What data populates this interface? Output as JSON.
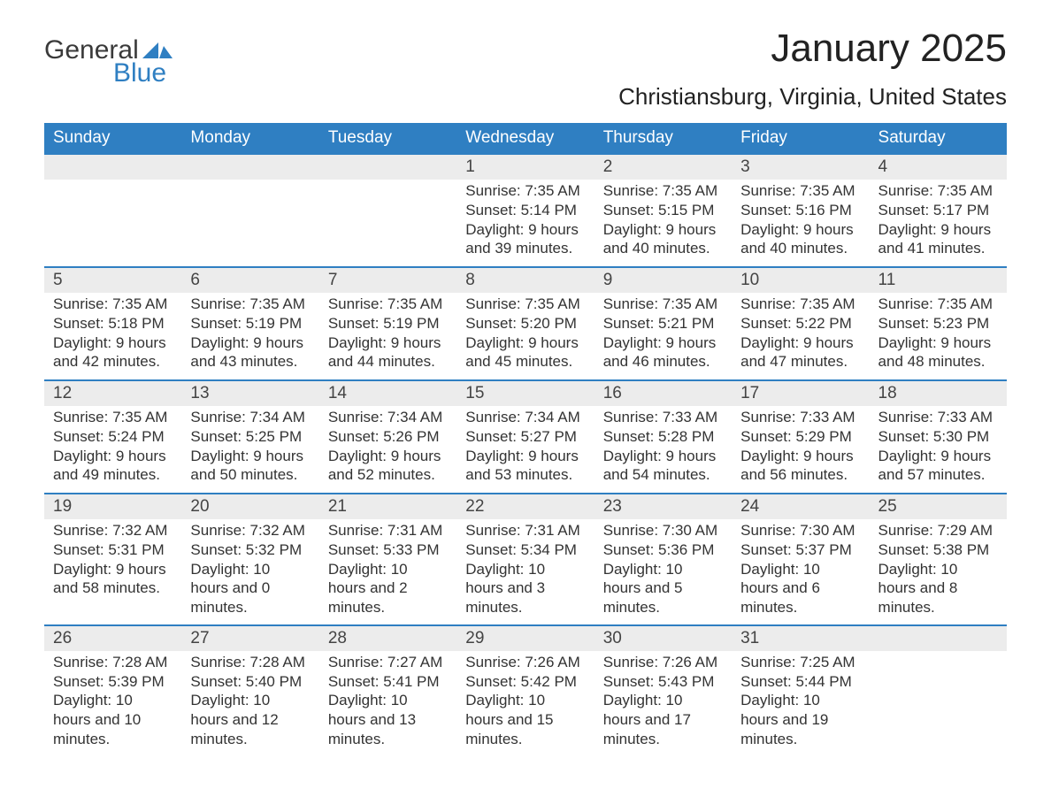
{
  "logo": {
    "text1": "General",
    "text2": "Blue",
    "flag_color": "#2f7fc2"
  },
  "title": "January 2025",
  "subtitle": "Christiansburg, Virginia, United States",
  "colors": {
    "header_bg": "#2f7fc2",
    "band_bg": "#ececec",
    "border": "#2f7fc2",
    "text": "#333333",
    "page_bg": "#ffffff"
  },
  "day_headers": [
    "Sunday",
    "Monday",
    "Tuesday",
    "Wednesday",
    "Thursday",
    "Friday",
    "Saturday"
  ],
  "weeks": [
    [
      {
        "n": "",
        "sr": "",
        "ss": "",
        "dl": ""
      },
      {
        "n": "",
        "sr": "",
        "ss": "",
        "dl": ""
      },
      {
        "n": "",
        "sr": "",
        "ss": "",
        "dl": ""
      },
      {
        "n": "1",
        "sr": "Sunrise: 7:35 AM",
        "ss": "Sunset: 5:14 PM",
        "dl": "Daylight: 9 hours and 39 minutes."
      },
      {
        "n": "2",
        "sr": "Sunrise: 7:35 AM",
        "ss": "Sunset: 5:15 PM",
        "dl": "Daylight: 9 hours and 40 minutes."
      },
      {
        "n": "3",
        "sr": "Sunrise: 7:35 AM",
        "ss": "Sunset: 5:16 PM",
        "dl": "Daylight: 9 hours and 40 minutes."
      },
      {
        "n": "4",
        "sr": "Sunrise: 7:35 AM",
        "ss": "Sunset: 5:17 PM",
        "dl": "Daylight: 9 hours and 41 minutes."
      }
    ],
    [
      {
        "n": "5",
        "sr": "Sunrise: 7:35 AM",
        "ss": "Sunset: 5:18 PM",
        "dl": "Daylight: 9 hours and 42 minutes."
      },
      {
        "n": "6",
        "sr": "Sunrise: 7:35 AM",
        "ss": "Sunset: 5:19 PM",
        "dl": "Daylight: 9 hours and 43 minutes."
      },
      {
        "n": "7",
        "sr": "Sunrise: 7:35 AM",
        "ss": "Sunset: 5:19 PM",
        "dl": "Daylight: 9 hours and 44 minutes."
      },
      {
        "n": "8",
        "sr": "Sunrise: 7:35 AM",
        "ss": "Sunset: 5:20 PM",
        "dl": "Daylight: 9 hours and 45 minutes."
      },
      {
        "n": "9",
        "sr": "Sunrise: 7:35 AM",
        "ss": "Sunset: 5:21 PM",
        "dl": "Daylight: 9 hours and 46 minutes."
      },
      {
        "n": "10",
        "sr": "Sunrise: 7:35 AM",
        "ss": "Sunset: 5:22 PM",
        "dl": "Daylight: 9 hours and 47 minutes."
      },
      {
        "n": "11",
        "sr": "Sunrise: 7:35 AM",
        "ss": "Sunset: 5:23 PM",
        "dl": "Daylight: 9 hours and 48 minutes."
      }
    ],
    [
      {
        "n": "12",
        "sr": "Sunrise: 7:35 AM",
        "ss": "Sunset: 5:24 PM",
        "dl": "Daylight: 9 hours and 49 minutes."
      },
      {
        "n": "13",
        "sr": "Sunrise: 7:34 AM",
        "ss": "Sunset: 5:25 PM",
        "dl": "Daylight: 9 hours and 50 minutes."
      },
      {
        "n": "14",
        "sr": "Sunrise: 7:34 AM",
        "ss": "Sunset: 5:26 PM",
        "dl": "Daylight: 9 hours and 52 minutes."
      },
      {
        "n": "15",
        "sr": "Sunrise: 7:34 AM",
        "ss": "Sunset: 5:27 PM",
        "dl": "Daylight: 9 hours and 53 minutes."
      },
      {
        "n": "16",
        "sr": "Sunrise: 7:33 AM",
        "ss": "Sunset: 5:28 PM",
        "dl": "Daylight: 9 hours and 54 minutes."
      },
      {
        "n": "17",
        "sr": "Sunrise: 7:33 AM",
        "ss": "Sunset: 5:29 PM",
        "dl": "Daylight: 9 hours and 56 minutes."
      },
      {
        "n": "18",
        "sr": "Sunrise: 7:33 AM",
        "ss": "Sunset: 5:30 PM",
        "dl": "Daylight: 9 hours and 57 minutes."
      }
    ],
    [
      {
        "n": "19",
        "sr": "Sunrise: 7:32 AM",
        "ss": "Sunset: 5:31 PM",
        "dl": "Daylight: 9 hours and 58 minutes."
      },
      {
        "n": "20",
        "sr": "Sunrise: 7:32 AM",
        "ss": "Sunset: 5:32 PM",
        "dl": "Daylight: 10 hours and 0 minutes."
      },
      {
        "n": "21",
        "sr": "Sunrise: 7:31 AM",
        "ss": "Sunset: 5:33 PM",
        "dl": "Daylight: 10 hours and 2 minutes."
      },
      {
        "n": "22",
        "sr": "Sunrise: 7:31 AM",
        "ss": "Sunset: 5:34 PM",
        "dl": "Daylight: 10 hours and 3 minutes."
      },
      {
        "n": "23",
        "sr": "Sunrise: 7:30 AM",
        "ss": "Sunset: 5:36 PM",
        "dl": "Daylight: 10 hours and 5 minutes."
      },
      {
        "n": "24",
        "sr": "Sunrise: 7:30 AM",
        "ss": "Sunset: 5:37 PM",
        "dl": "Daylight: 10 hours and 6 minutes."
      },
      {
        "n": "25",
        "sr": "Sunrise: 7:29 AM",
        "ss": "Sunset: 5:38 PM",
        "dl": "Daylight: 10 hours and 8 minutes."
      }
    ],
    [
      {
        "n": "26",
        "sr": "Sunrise: 7:28 AM",
        "ss": "Sunset: 5:39 PM",
        "dl": "Daylight: 10 hours and 10 minutes."
      },
      {
        "n": "27",
        "sr": "Sunrise: 7:28 AM",
        "ss": "Sunset: 5:40 PM",
        "dl": "Daylight: 10 hours and 12 minutes."
      },
      {
        "n": "28",
        "sr": "Sunrise: 7:27 AM",
        "ss": "Sunset: 5:41 PM",
        "dl": "Daylight: 10 hours and 13 minutes."
      },
      {
        "n": "29",
        "sr": "Sunrise: 7:26 AM",
        "ss": "Sunset: 5:42 PM",
        "dl": "Daylight: 10 hours and 15 minutes."
      },
      {
        "n": "30",
        "sr": "Sunrise: 7:26 AM",
        "ss": "Sunset: 5:43 PM",
        "dl": "Daylight: 10 hours and 17 minutes."
      },
      {
        "n": "31",
        "sr": "Sunrise: 7:25 AM",
        "ss": "Sunset: 5:44 PM",
        "dl": "Daylight: 10 hours and 19 minutes."
      },
      {
        "n": "",
        "sr": "",
        "ss": "",
        "dl": ""
      }
    ]
  ]
}
